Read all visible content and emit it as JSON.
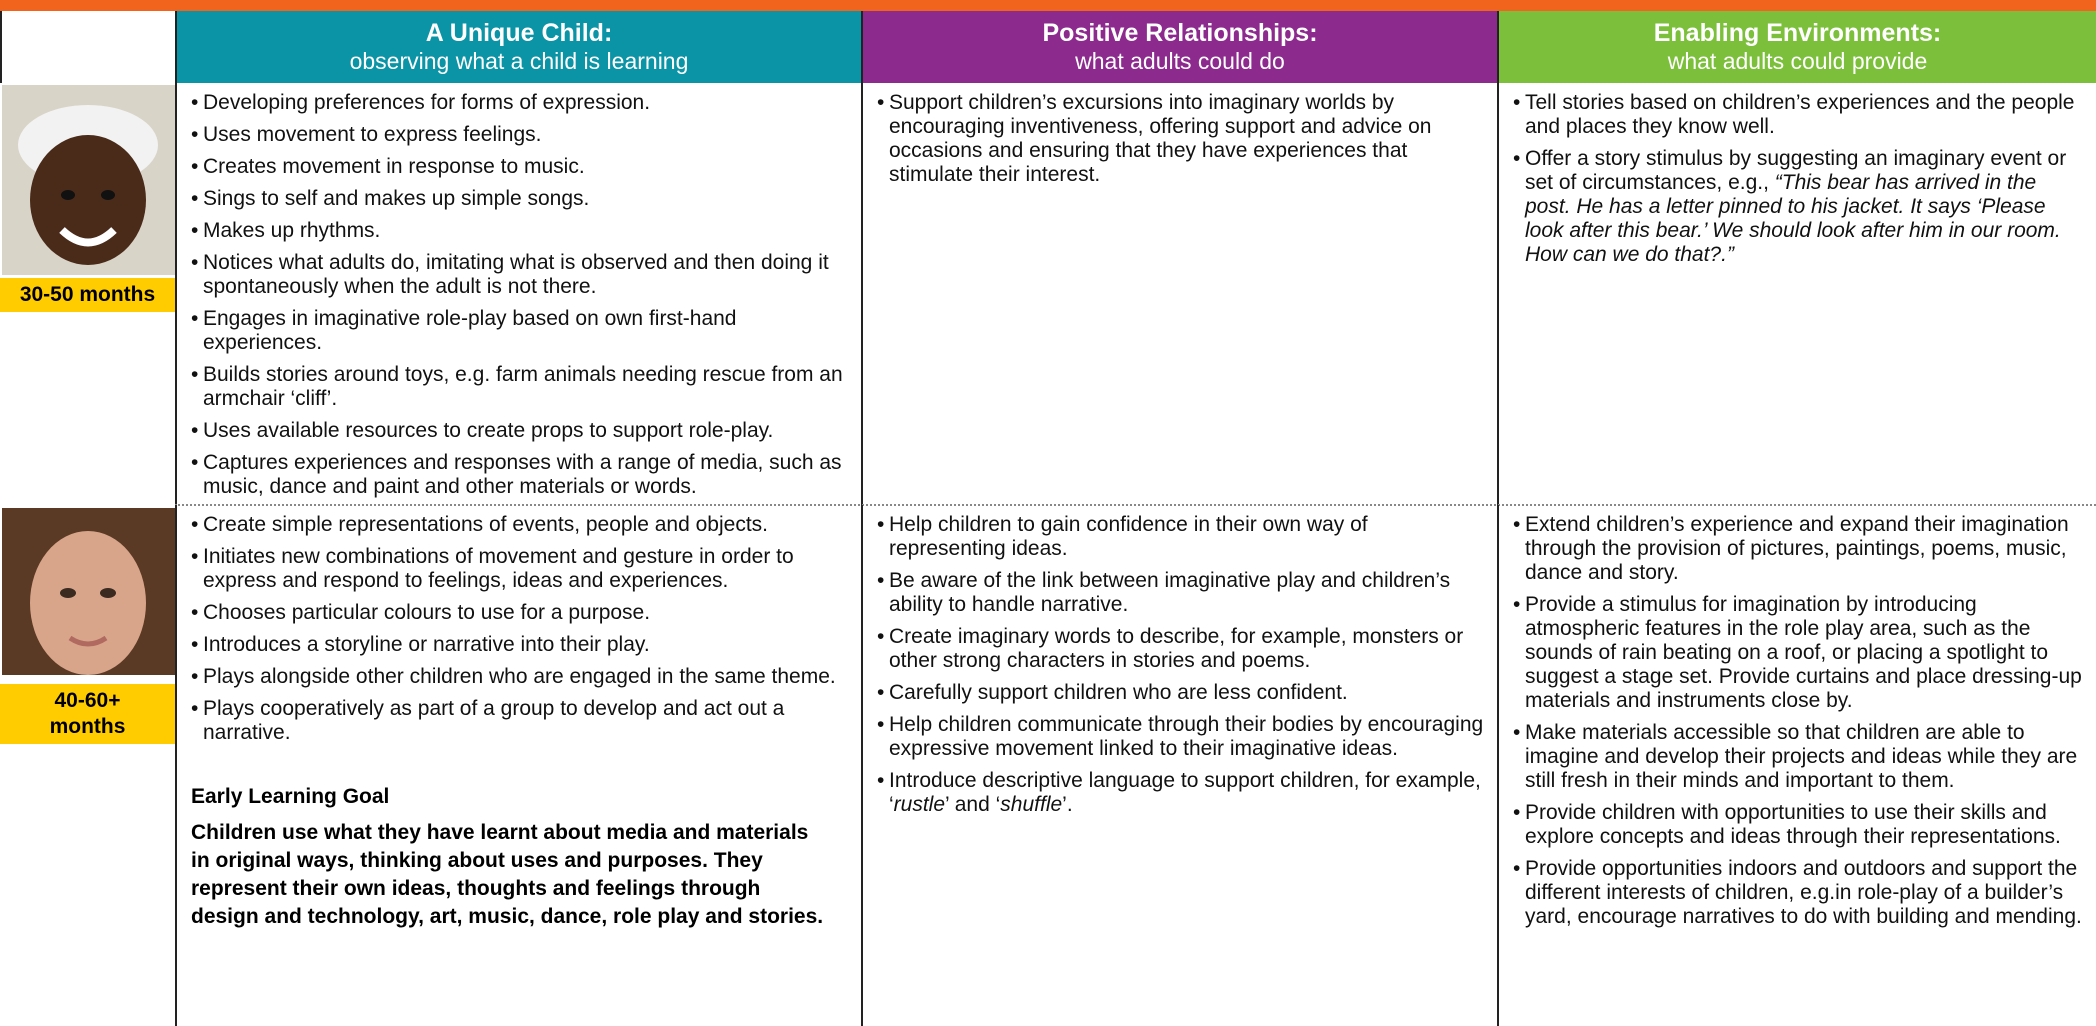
{
  "header": {
    "columns": [
      {
        "title": "A Unique Child:",
        "subtitle": "observing what a child is learning"
      },
      {
        "title": "Positive Relationships:",
        "subtitle": "what adults could do"
      },
      {
        "title": "Enabling Environments:",
        "subtitle": "what adults could provide"
      }
    ]
  },
  "rows": [
    {
      "age": "30-50 months",
      "cells": [
        [
          "Developing preferences for forms of expression.",
          "Uses movement to express feelings.",
          "Creates movement in response to music.",
          "Sings to self and makes up simple songs.",
          "Makes up rhythms.",
          "Notices what adults do, imitating what is observed and then doing it spontaneously when the adult is not there.",
          "Engages in imaginative role-play based on own first-hand experiences.",
          "Builds stories around toys, e.g. farm animals  needing rescue from an armchair ‘cliff’.",
          "Uses available resources to create props to support role-play.",
          "Captures experiences and responses with a range of media, such as music, dance and paint and other materials or words."
        ],
        [
          "Support children’s excursions into imaginary worlds by encouraging inventiveness, offering support and advice on occasions and ensuring that they have experiences that stimulate their interest."
        ],
        [
          "Tell stories based on children’s experiences and the people and places they know well.",
          [
            {
              "text": "Offer a story stimulus by suggesting an imaginary event or set of circumstances, e.g., ",
              "italic": false
            },
            {
              "text": "“This bear has arrived in the post. He has a letter pinned to his jacket. It says ‘Please look after this bear.’ We should look after him in our room. How can we do that?.”",
              "italic": true
            }
          ]
        ]
      ]
    },
    {
      "age": "40-60+ months",
      "cells": [
        [
          "Create simple representations of events, people and objects.",
          "Initiates new combinations of movement and gesture in order to express and respond to feelings, ideas and experiences.",
          "Chooses particular colours to use for a purpose.",
          "Introduces a storyline or narrative into their play.",
          "Plays alongside other children who are engaged in the same theme.",
          "Plays cooperatively as part of a group to develop and act out a narrative."
        ],
        [
          "Help children to gain confidence in their own way of representing ideas.",
          "Be aware of the link between imaginative play and children’s ability to handle narrative.",
          "Create imaginary words to describe, for example, monsters or other strong characters in stories and poems.",
          "Carefully support children who are less confident.",
          "Help children communicate through their bodies by encouraging expressive movement linked to their imaginative ideas.",
          [
            {
              "text": "Introduce descriptive language to support children, for example, ‘",
              "italic": false
            },
            {
              "text": "rustle",
              "italic": true
            },
            {
              "text": "’ and ‘",
              "italic": false
            },
            {
              "text": "shuffle",
              "italic": true
            },
            {
              "text": "’.",
              "italic": false
            }
          ]
        ],
        [
          "Extend children’s experience and expand their imagination through the provision of pictures, paintings, poems, music, dance and story.",
          "Provide a stimulus for imagination by introducing atmospheric features in the role play area, such as the sounds of rain beating on a roof, or placing a spotlight to suggest a stage set. Provide curtains and place dressing-up materials and instruments close by.",
          "Make materials accessible so that children are able to imagine and develop their projects and ideas while they are still fresh in their minds and important to them.",
          "Provide children with opportunities to use their skills and explore concepts and ideas through their representations.",
          "Provide opportunities indoors and outdoors and support the different interests of children, e.g.in role-play of a builder’s yard, encourage narratives to do with building and mending."
        ]
      ],
      "goal": {
        "heading": "Early Learning Goal",
        "text": "Children use what they have learnt about media and materials in original ways, thinking about uses and purposes. They represent their own ideas, thoughts and feelings through design and technology, art, music, dance, role play and stories."
      }
    }
  ]
}
